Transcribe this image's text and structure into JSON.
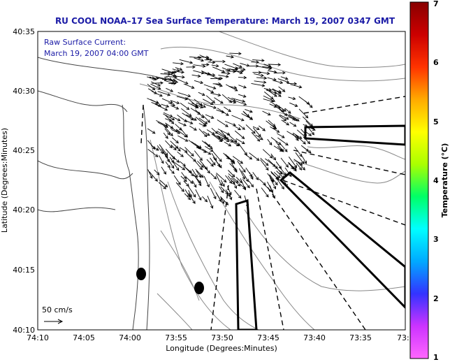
{
  "title": "RU COOL  NOAA–17  Sea Surface Temperature:  March 19, 2007 0347 GMT",
  "annotation": {
    "line1": "Raw Surface Current:",
    "line2": "March 19, 2007 04:00 GMT"
  },
  "map": {
    "xlabel": "Longitude (Degrees:Minutes)",
    "ylabel": "Latitude (Degrees:Minutes)",
    "x_ticks": [
      "74:10",
      "74:05",
      "74:00",
      "73:55",
      "73:50",
      "73:45",
      "73:40",
      "73:35",
      "73:3"
    ],
    "y_ticks": [
      "40:35",
      "40:30",
      "40:25",
      "40:20",
      "40:15",
      "40:10"
    ],
    "scale_label": "50 cm/s"
  },
  "colorbar": {
    "label": "Temperature (°C)",
    "ticks": [
      "7",
      "6",
      "5",
      "4",
      "3",
      "2",
      "1"
    ],
    "colors": [
      "#ff66ff",
      "#cc33ff",
      "#3333ff",
      "#00aaff",
      "#00ffff",
      "#00ff66",
      "#aaff00",
      "#ffff00",
      "#ffaa00",
      "#ff3300",
      "#cc0000",
      "#880000"
    ]
  }
}
